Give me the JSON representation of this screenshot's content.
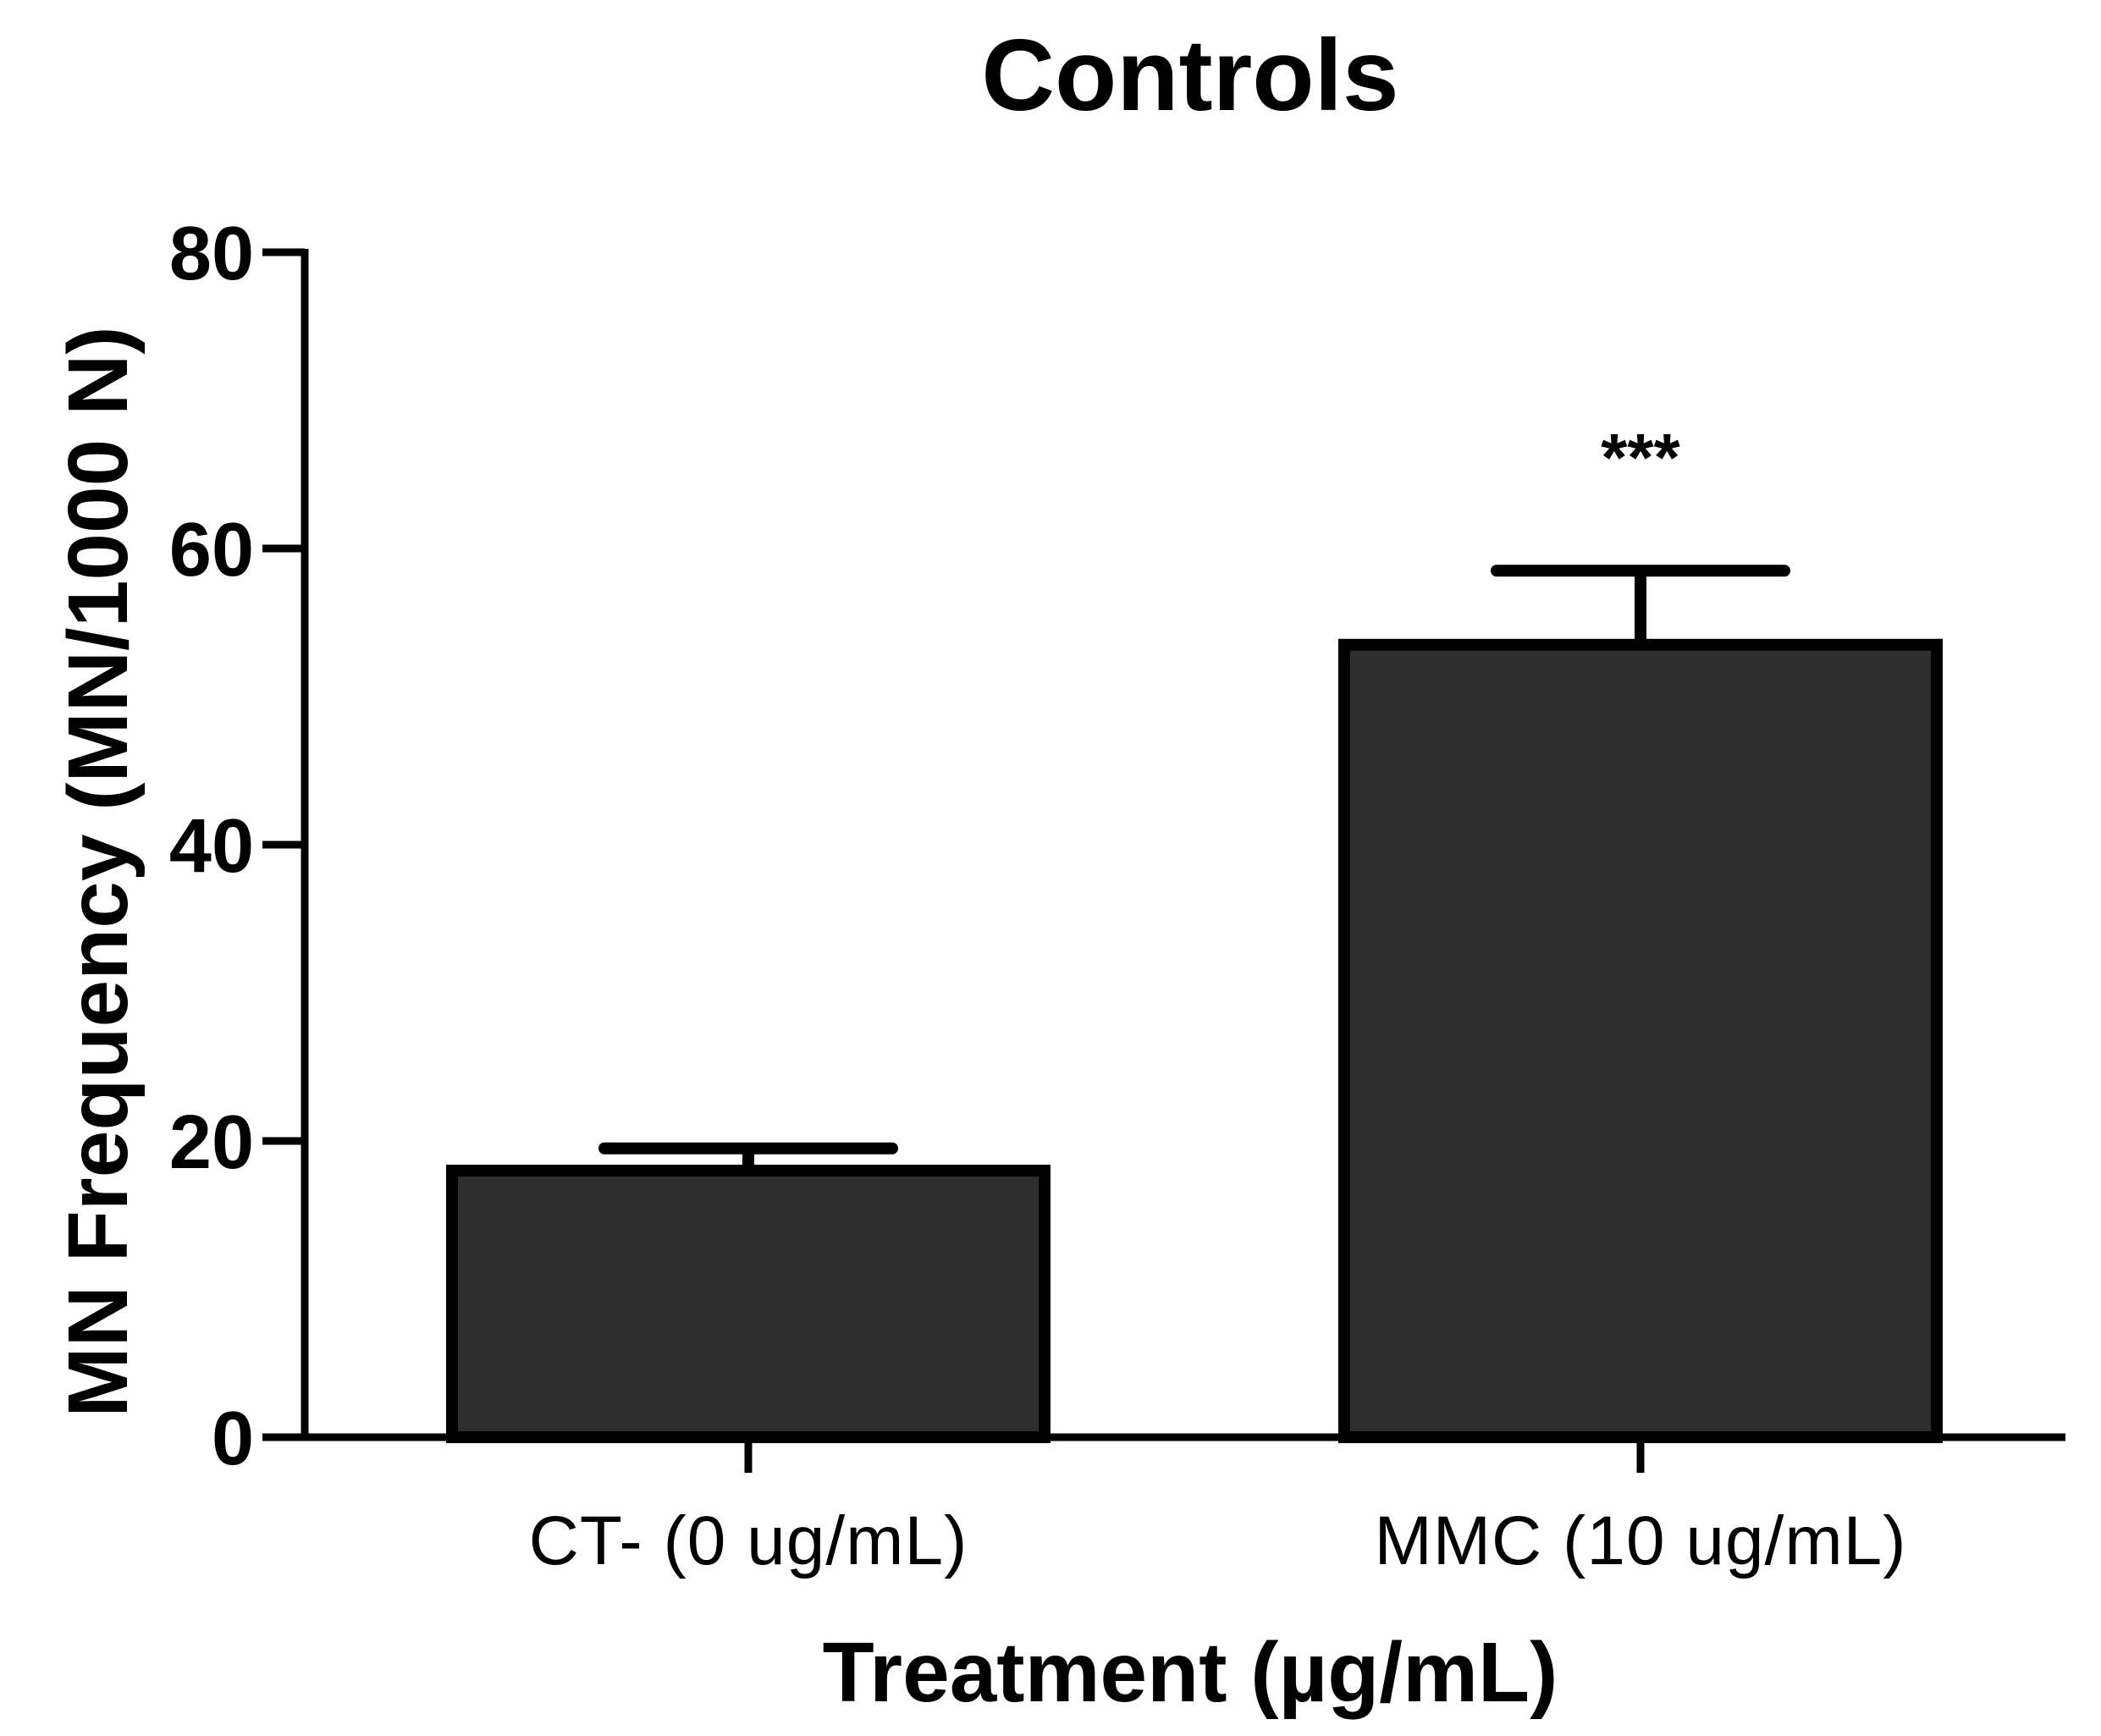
{
  "chart_data": {
    "type": "bar",
    "title": "Controls",
    "xlabel": "Treatment (µg/mL)",
    "ylabel": "MN Frequency (MN/1000 N)",
    "categories": [
      "CT- (0 ug/mL)",
      "MMC (10 ug/mL)"
    ],
    "values": [
      18,
      53.5
    ],
    "error": [
      1.5,
      5
    ],
    "annotations": [
      "",
      "***"
    ],
    "ylim": [
      0,
      80
    ],
    "yticks": [
      "0",
      "20",
      "40",
      "60",
      "80"
    ],
    "grid": false,
    "colors": {
      "bar_fill": "#2e2e2e",
      "bar_edge": "#000000",
      "axis": "#000000"
    }
  }
}
